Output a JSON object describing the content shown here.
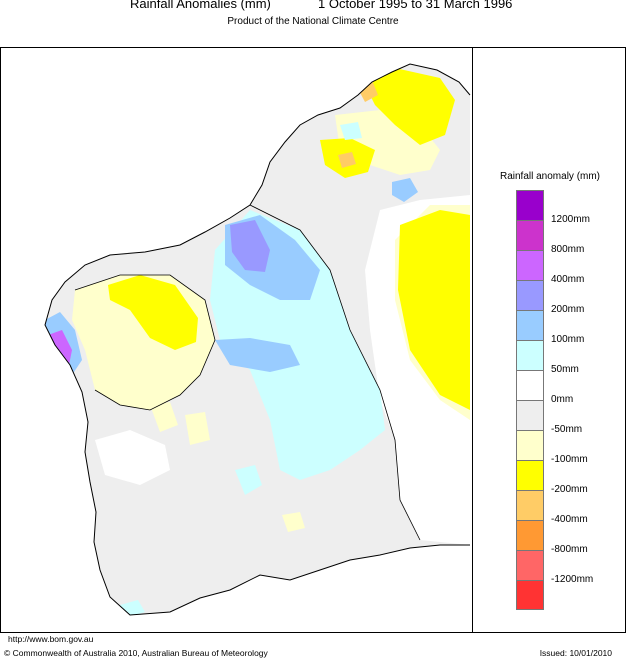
{
  "header": {
    "title": "Rainfall Anomalies (mm)",
    "period": "1 October 1995 to 31 March 1996",
    "subtitle": "Product of the National Climate Centre"
  },
  "legend": {
    "title": "Rainfall anomaly (mm)",
    "swatches": [
      {
        "color": "#9900cc"
      },
      {
        "color": "#cc33cc"
      },
      {
        "color": "#cc66ff"
      },
      {
        "color": "#9999ff"
      },
      {
        "color": "#99ccff"
      },
      {
        "color": "#ccffff"
      },
      {
        "color": "#ffffff"
      },
      {
        "color": "#eeeeee"
      },
      {
        "color": "#ffffcc"
      },
      {
        "color": "#ffff00"
      },
      {
        "color": "#ffcc66"
      },
      {
        "color": "#ff9933"
      },
      {
        "color": "#ff6666"
      },
      {
        "color": "#ff3333"
      }
    ],
    "labels": [
      "1200mm",
      "800mm",
      "400mm",
      "200mm",
      "100mm",
      "50mm",
      "0mm",
      "-50mm",
      "-100mm",
      "-200mm",
      "-400mm",
      "-800mm",
      "-1200mm"
    ]
  },
  "footer": {
    "url": "http://www.bom.gov.au",
    "copyright": "© Commonwealth of Australia 2010, Australian Bureau of Meteorology",
    "issued": "Issued: 10/01/2010"
  }
}
